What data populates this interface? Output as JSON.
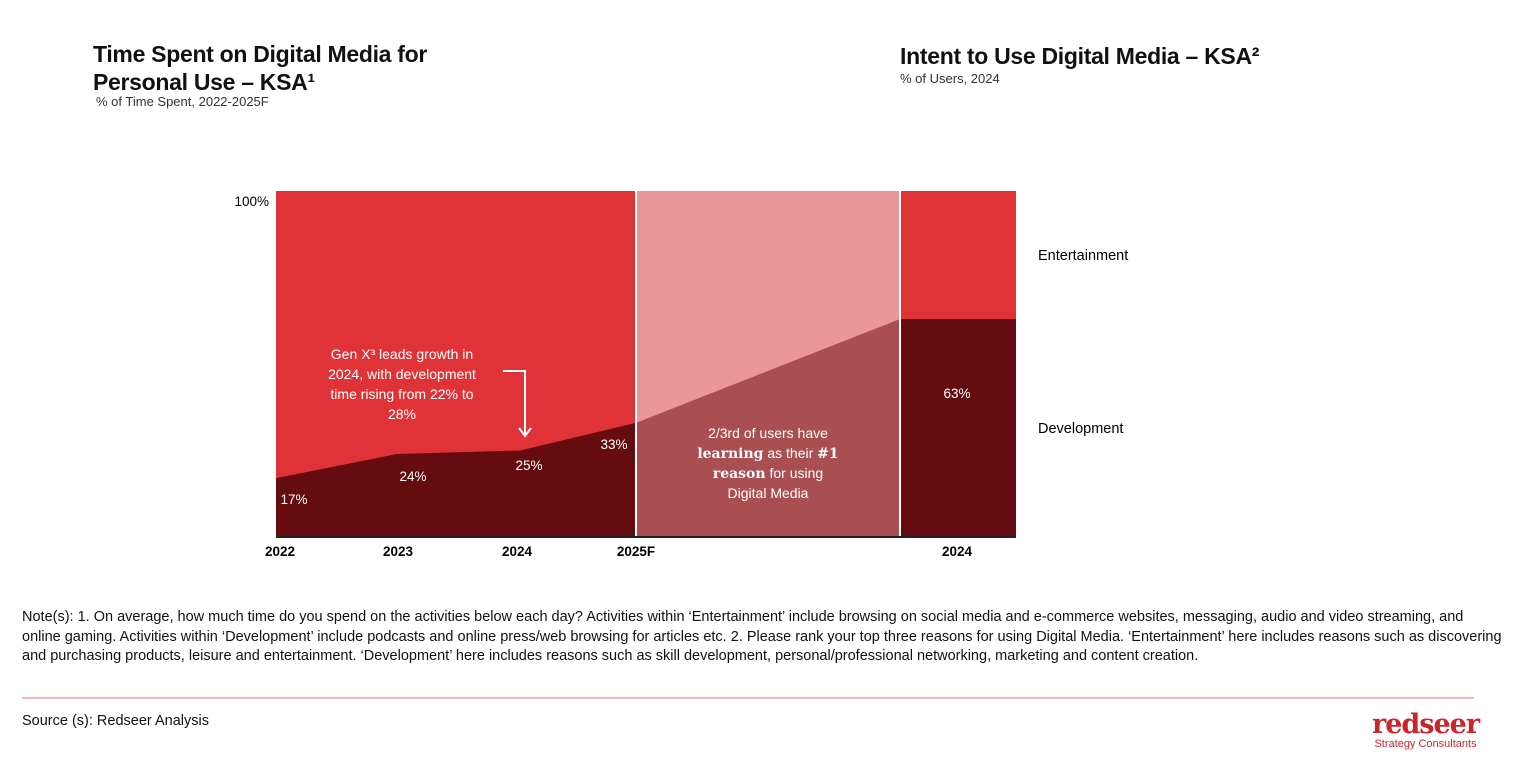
{
  "left_title": {
    "line1": "Time Spent on Digital Media for",
    "line2": "Personal Use – KSA¹",
    "subtitle": "% of Time Spent, 2022-2025F"
  },
  "right_title": {
    "title": "Intent to Use Digital Media – KSA²",
    "subtitle": "% of Users, 2024"
  },
  "chart_data": [
    {
      "type": "area",
      "title": "Time Spent on Digital Media for Personal Use – KSA¹",
      "subtitle": "% of Time Spent, 2022-2025F",
      "categories": [
        "2022",
        "2023",
        "2024",
        "2025F"
      ],
      "ylim": [
        0,
        100
      ],
      "y_tick": "100%",
      "series": [
        {
          "name": "Development",
          "values": [
            17,
            24,
            25,
            33
          ],
          "labels": [
            "17%",
            "24%",
            "25%",
            "33%"
          ],
          "color": "#650c10"
        },
        {
          "name": "Entertainment",
          "values": [
            83,
            76,
            75,
            67
          ],
          "color": "#df3338"
        }
      ]
    },
    {
      "type": "bar",
      "stacked": true,
      "title": "Intent to Use Digital Media – KSA²",
      "subtitle": "% of Users, 2024",
      "categories": [
        "2024"
      ],
      "ylim": [
        0,
        100
      ],
      "series": [
        {
          "name": "Development",
          "values": [
            63
          ],
          "labels": [
            "63%"
          ],
          "color": "#650c10"
        },
        {
          "name": "Entertainment",
          "values": [
            37
          ],
          "color": "#df3338"
        }
      ]
    }
  ],
  "connector_colors": {
    "development": "#a94f52",
    "entertainment": "#eb9698"
  },
  "annotations": {
    "genx": [
      "Gen X³ leads growth in",
      "2024, with development",
      "time rising from 22% to",
      "28%"
    ],
    "learning": {
      "l1": "2/3rd of users have",
      "l2a": "learning",
      "l2b": " as their ",
      "l2c": "#1",
      "l3a": "reason",
      "l3b": " for using",
      "l4": "Digital Media"
    }
  },
  "legend": {
    "entertainment": "Entertainment",
    "development": "Development"
  },
  "note": "Note(s): 1. On average, how much time do you spend on the activities below each day? Activities within ‘Entertainment’ include browsing on social media and e-commerce websites, messaging, audio and video streaming, and online gaming. Activities within ‘Development’ include podcasts and online press/web browsing for articles etc. 2. Please rank your top three reasons for using Digital Media. ‘Entertainment’ here includes reasons such as discovering and purchasing products, leisure and entertainment. ‘Development’ here includes reasons such as skill development, personal/professional networking, marketing and content creation.",
  "source": "Source (s): Redseer Analysis",
  "logo": {
    "wordmark": "redseer",
    "tagline": "Strategy Consultants"
  }
}
